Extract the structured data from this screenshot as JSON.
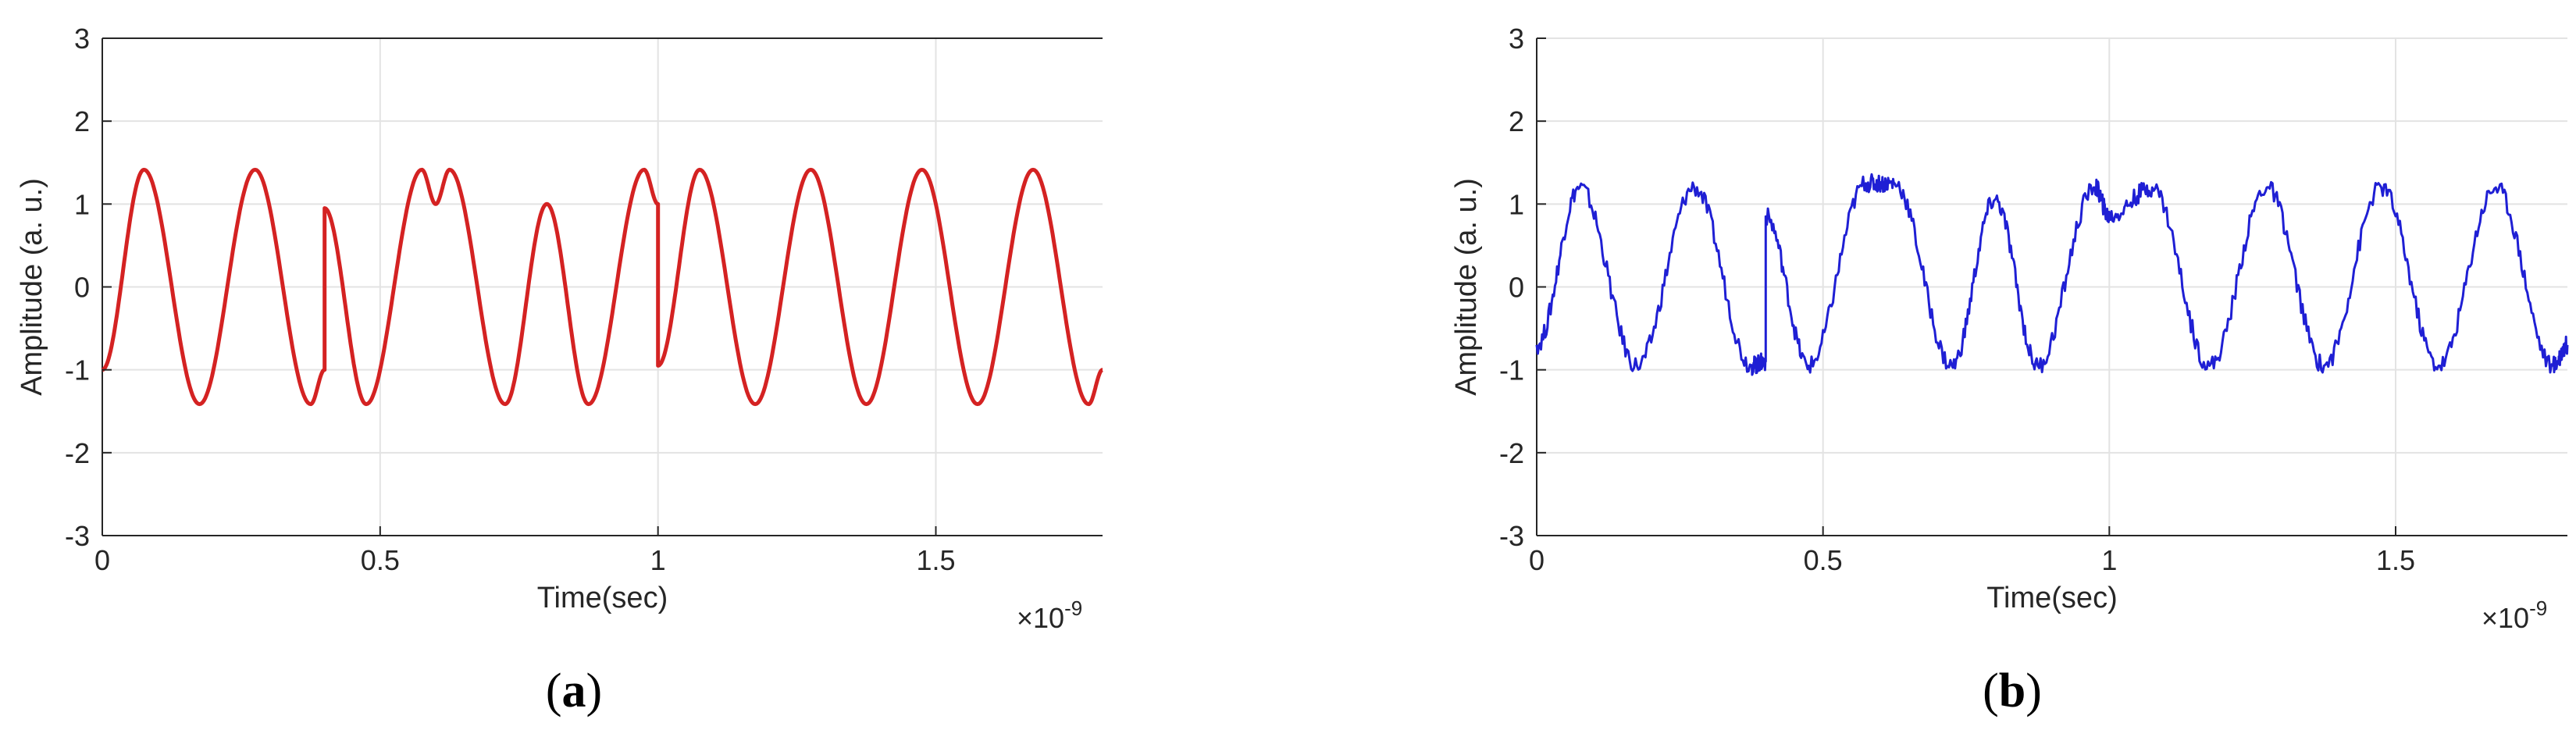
{
  "panels": [
    {
      "label": "a",
      "ylabel": "Amplitude (a. u.)",
      "xlabel": "Time(sec)",
      "exponent": "×10",
      "exponent_power": "-9",
      "xticks": [
        "0",
        "0.5",
        "1",
        "1.5"
      ],
      "yticks": [
        "-3",
        "-2",
        "-1",
        "0",
        "1",
        "2",
        "3"
      ],
      "line_color": "#d42222"
    },
    {
      "label": "b",
      "ylabel": "Amplitude (a. u.)",
      "xlabel": "Time(sec)",
      "exponent": "×10",
      "exponent_power": "-9",
      "xticks": [
        "0",
        "0.5",
        "1",
        "1.5"
      ],
      "yticks": [
        "-3",
        "-2",
        "-1",
        "0",
        "1",
        "2",
        "3"
      ],
      "line_color": "#1f1fd4"
    }
  ],
  "chart_data": [
    {
      "type": "line",
      "xlabel": "Time(sec)",
      "ylabel": "Amplitude (a. u.)",
      "xlim": [
        0,
        1.8
      ],
      "ylim": [
        -3,
        3
      ],
      "x_multiplier": "1e-9",
      "grid": true,
      "color": "#d42222",
      "series": [
        {
          "x": [
            0.0,
            0.075,
            0.175,
            0.275,
            0.375,
            0.4,
            0.4,
            0.475,
            0.575,
            0.6,
            0.625,
            0.725,
            0.8,
            0.875,
            0.975,
            1.0,
            1.0,
            1.075,
            1.175,
            1.275,
            1.375,
            1.475,
            1.575,
            1.675,
            1.775,
            1.8
          ],
          "values": [
            -1.0,
            1.414,
            -1.414,
            1.414,
            -1.414,
            -1.0,
            0.95,
            -1.414,
            1.414,
            1.0,
            1.414,
            -1.414,
            1.0,
            -1.414,
            1.414,
            1.0,
            -0.95,
            1.414,
            -1.414,
            1.414,
            -1.414,
            1.414,
            -1.414,
            1.414,
            -1.414,
            -1.0
          ]
        }
      ]
    },
    {
      "type": "line",
      "xlabel": "Time(sec)",
      "ylabel": "Amplitude (a. u.)",
      "xlim": [
        0,
        1.8
      ],
      "ylim": [
        -3,
        3
      ],
      "x_multiplier": "1e-9",
      "grid": true,
      "color": "#1f1fd4",
      "series": [
        {
          "x": [
            0.0,
            0.075,
            0.175,
            0.275,
            0.375,
            0.4,
            0.4,
            0.475,
            0.575,
            0.625,
            0.725,
            0.8,
            0.875,
            0.975,
            1.0,
            1.075,
            1.175,
            1.275,
            1.375,
            1.475,
            1.575,
            1.675,
            1.775,
            1.8
          ],
          "values": [
            -0.7,
            1.2,
            -0.95,
            1.2,
            -0.95,
            -0.9,
            0.85,
            -0.95,
            1.25,
            1.25,
            -0.95,
            1.05,
            -0.95,
            1.2,
            0.85,
            1.2,
            -0.95,
            1.2,
            -0.95,
            1.2,
            -0.95,
            1.2,
            -0.95,
            -0.7
          ]
        }
      ]
    }
  ]
}
